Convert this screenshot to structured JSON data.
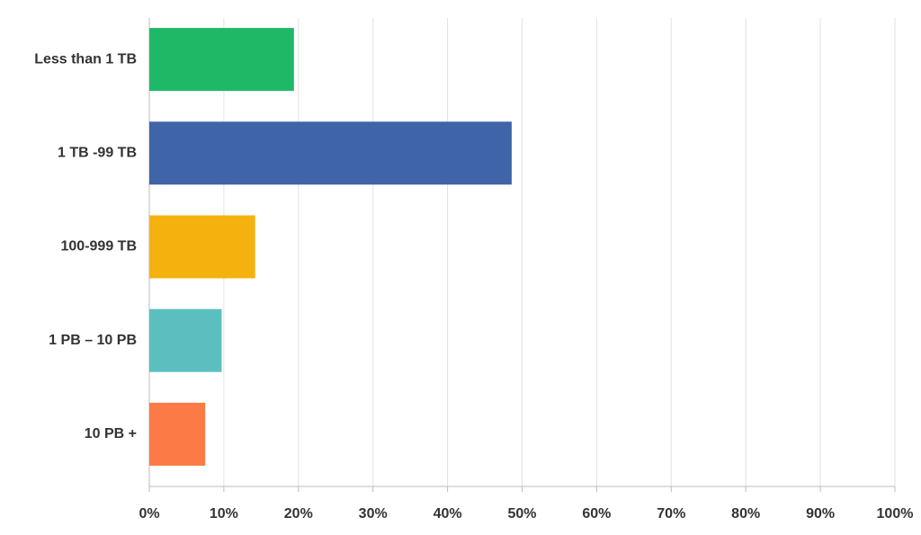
{
  "chart_data": {
    "type": "barh",
    "categories": [
      "Less than 1 TB",
      "1 TB -99 TB",
      "100-999 TB",
      "1 PB – 10 PB",
      "10 PB +"
    ],
    "values": [
      19.4,
      48.6,
      14.2,
      9.7,
      7.5
    ],
    "colors": [
      "#1fb866",
      "#3f65a8",
      "#f5b20e",
      "#5bbfc0",
      "#fb7a45"
    ],
    "xlim": [
      0,
      100
    ],
    "xticks": [
      {
        "value": 0,
        "label": "0%"
      },
      {
        "value": 10,
        "label": "10%"
      },
      {
        "value": 20,
        "label": "20%"
      },
      {
        "value": 30,
        "label": "30%"
      },
      {
        "value": 40,
        "label": "40%"
      },
      {
        "value": 50,
        "label": "50%"
      },
      {
        "value": 60,
        "label": "60%"
      },
      {
        "value": 70,
        "label": "70%"
      },
      {
        "value": 80,
        "label": "80%"
      },
      {
        "value": 90,
        "label": "90%"
      },
      {
        "value": 100,
        "label": "100%"
      }
    ],
    "grid": true
  }
}
